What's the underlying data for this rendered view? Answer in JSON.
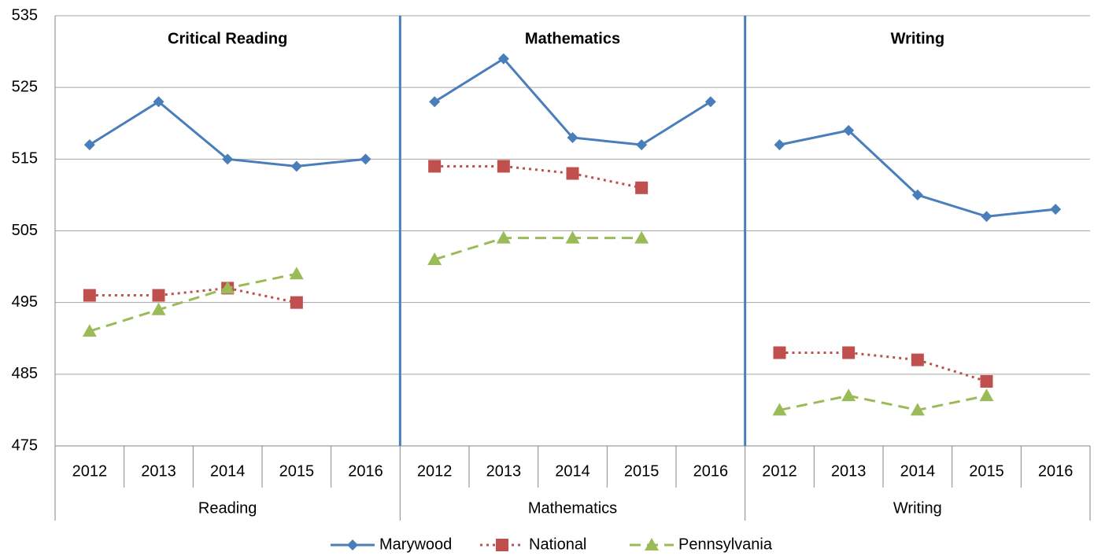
{
  "chart_data": {
    "type": "line",
    "groups": [
      {
        "label": "Reading",
        "title": "Critical Reading",
        "categories": [
          "2012",
          "2013",
          "2014",
          "2015",
          "2016"
        ]
      },
      {
        "label": "Mathematics",
        "title": "Mathematics",
        "categories": [
          "2012",
          "2013",
          "2014",
          "2015",
          "2016"
        ]
      },
      {
        "label": "Writing",
        "title": "Writing",
        "categories": [
          "2012",
          "2013",
          "2014",
          "2015",
          "2016"
        ]
      }
    ],
    "series": [
      {
        "name": "Marywood",
        "color": "#4a7ebb",
        "dash": "solid",
        "marker": "diamond",
        "values": [
          [
            517,
            523,
            515,
            514,
            515
          ],
          [
            523,
            529,
            518,
            517,
            523
          ],
          [
            517,
            519,
            510,
            507,
            508
          ]
        ]
      },
      {
        "name": "National",
        "color": "#c0504d",
        "dash": "dotted",
        "marker": "square",
        "values": [
          [
            496,
            496,
            497,
            495,
            null
          ],
          [
            514,
            514,
            513,
            511,
            null
          ],
          [
            488,
            488,
            487,
            484,
            null
          ]
        ]
      },
      {
        "name": "Pennsylvania",
        "color": "#9bbb59",
        "dash": "dashed",
        "marker": "triangle",
        "values": [
          [
            491,
            494,
            497,
            499,
            null
          ],
          [
            501,
            504,
            504,
            504,
            null
          ],
          [
            480,
            482,
            480,
            482,
            null
          ]
        ]
      }
    ],
    "ylim": [
      475,
      535
    ],
    "yticks": [
      475,
      485,
      495,
      505,
      515,
      525,
      535
    ],
    "grid": true,
    "legend": "bottom"
  }
}
